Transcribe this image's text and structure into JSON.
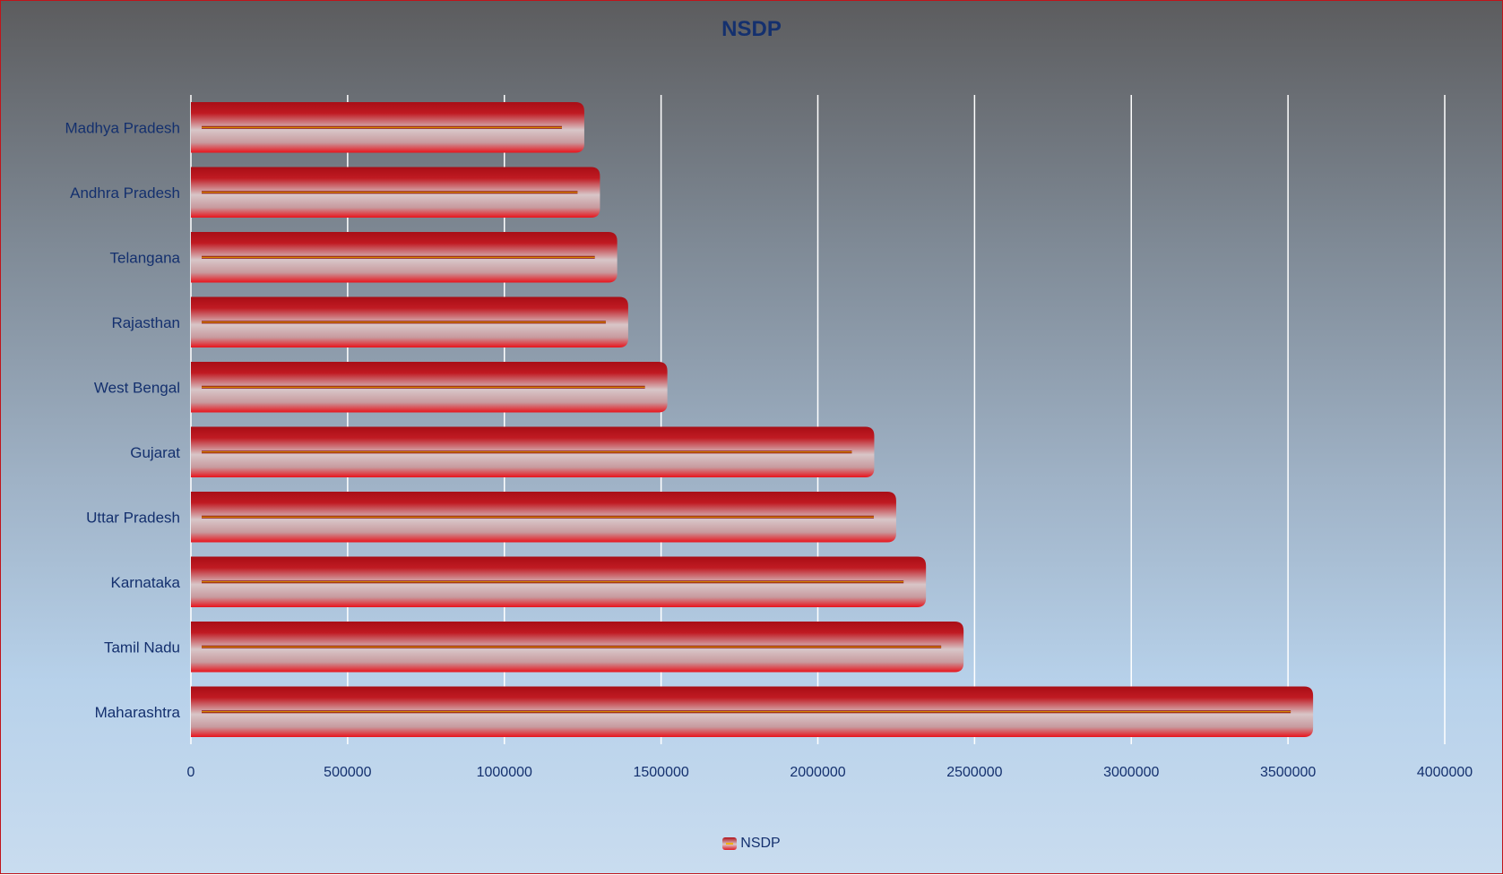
{
  "chart_data": {
    "type": "bar",
    "orientation": "horizontal",
    "title": "NSDP",
    "categories": [
      "Madhya Pradesh",
      "Andhra Pradesh",
      "Telangana",
      "Rajasthan",
      "West Bengal",
      "Gujarat",
      "Uttar Pradesh",
      "Karnataka",
      "Tamil Nadu",
      "Maharashtra"
    ],
    "series": [
      {
        "name": "NSDP",
        "values": [
          1255000,
          1305000,
          1360000,
          1395000,
          1520000,
          2180000,
          2250000,
          2345000,
          2465000,
          3580000
        ]
      }
    ],
    "xlim": [
      0,
      4000000
    ],
    "xticks": [
      0,
      500000,
      1000000,
      1500000,
      2000000,
      2500000,
      3000000,
      3500000,
      4000000
    ],
    "xtick_labels": [
      "0",
      "500000",
      "1000000",
      "1500000",
      "2000000",
      "2500000",
      "3000000",
      "3500000",
      "4000000"
    ],
    "grid": "vertical",
    "legend": "bottom",
    "colors": {
      "bar_dark": "#b01018",
      "bar_light": "#d8c6c8",
      "bar_inner_line": "#f0b000",
      "text": "#14306e",
      "grid": "#ffffff"
    }
  }
}
